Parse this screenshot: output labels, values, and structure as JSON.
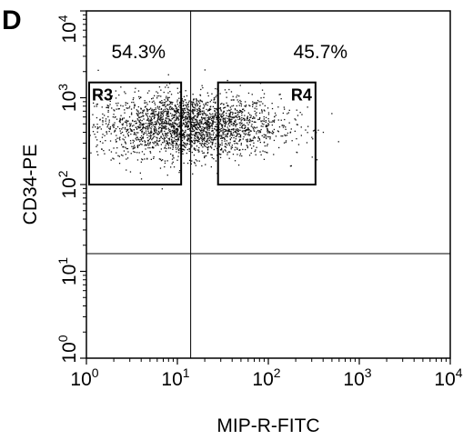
{
  "panel_label": "D",
  "chart_data": {
    "type": "scatter",
    "title": "",
    "xlabel": "MIP-R-FITC",
    "ylabel": "CD34-PE",
    "x_scale": "log",
    "y_scale": "log",
    "xlim": [
      1,
      10000
    ],
    "ylim": [
      1,
      10000
    ],
    "x_ticks": [
      {
        "value": 1,
        "base": "10",
        "exp": "0"
      },
      {
        "value": 10,
        "base": "10",
        "exp": "1"
      },
      {
        "value": 100,
        "base": "10",
        "exp": "2"
      },
      {
        "value": 1000,
        "base": "10",
        "exp": "3"
      },
      {
        "value": 10000,
        "base": "10",
        "exp": "4"
      }
    ],
    "y_ticks": [
      {
        "value": 1,
        "base": "10",
        "exp": "0"
      },
      {
        "value": 10,
        "base": "10",
        "exp": "1"
      },
      {
        "value": 100,
        "base": "10",
        "exp": "2"
      },
      {
        "value": 1000,
        "base": "10",
        "exp": "3"
      },
      {
        "value": 10000,
        "base": "10",
        "exp": "4"
      }
    ],
    "quadrant_lines": {
      "x": 14,
      "y": 16
    },
    "quadrant_labels": [
      {
        "text": "54.3%",
        "quadrant": "upper-left"
      },
      {
        "text": "45.7%",
        "quadrant": "upper-right"
      }
    ],
    "gates": [
      {
        "name": "R3",
        "x": [
          1,
          11
        ],
        "y": [
          100,
          1500
        ]
      },
      {
        "name": "R4",
        "x": [
          28,
          330
        ],
        "y": [
          100,
          1500
        ]
      }
    ],
    "population": {
      "description_points": "dense cloud of events",
      "x_center": 13,
      "y_center": 480,
      "x_spread_decades": 0.5,
      "y_spread_decades": 0.18,
      "count": 2600
    },
    "grid": false,
    "legend": "none"
  }
}
